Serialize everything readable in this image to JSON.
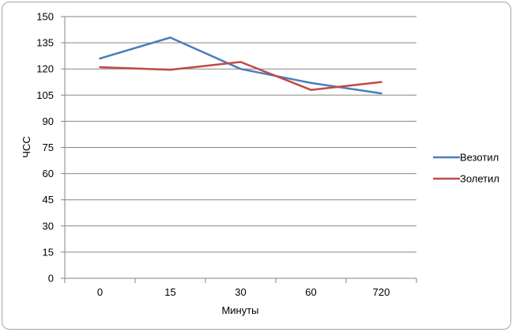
{
  "chart_data": {
    "type": "line",
    "categories": [
      "0",
      "15",
      "30",
      "60",
      "720"
    ],
    "series": [
      {
        "name": "Везотил",
        "values": [
          126,
          138,
          120,
          112,
          106
        ],
        "color": "#4a7ebb"
      },
      {
        "name": "Золетил",
        "values": [
          121,
          119.5,
          124,
          108,
          112.5
        ],
        "color": "#be4b48"
      }
    ],
    "xlabel": "Минуты",
    "ylabel": "ЧСС",
    "ylim": [
      0,
      150
    ],
    "yticks": [
      "0",
      "15",
      "30",
      "45",
      "60",
      "75",
      "90",
      "105",
      "120",
      "135",
      "150"
    ],
    "grid": true,
    "legend_position": "right"
  }
}
